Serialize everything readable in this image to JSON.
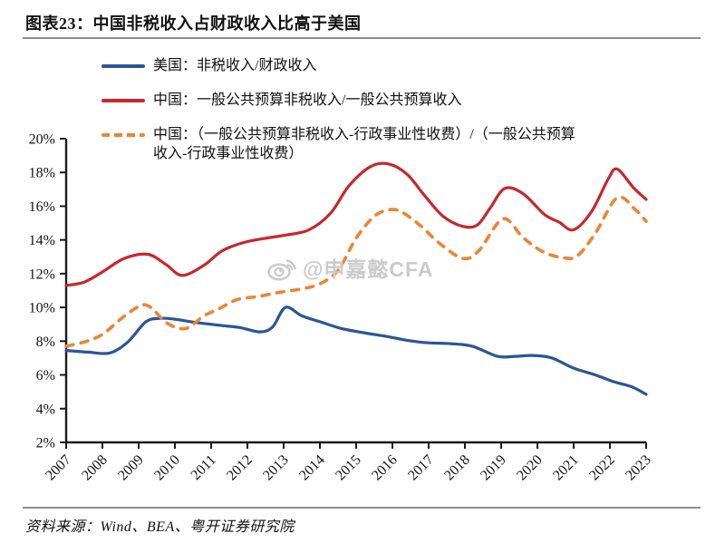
{
  "title": "图表23：中国非税收入占财政收入比高于美国",
  "source": "资料来源：Wind、BEA、粤开证券研究院",
  "watermark": "@申嘉懿CFA",
  "colors": {
    "us_blue": "#2A5697",
    "china_red": "#C8272D",
    "china_orange": "#EE8434",
    "watermark_gray": "#CBCBCB",
    "rule_gray": "#8F8F8F"
  },
  "legend": {
    "items": [
      {
        "lines": [
          "美国：非税收入/财政收入"
        ],
        "style": "solid-blue"
      },
      {
        "lines": [
          "中国：一般公共预算非税收入/一般公共预算收入"
        ],
        "style": "solid-red"
      },
      {
        "lines": [
          "中国：（一般公共预算非税收入-行政事业性收费）/（一般公共预算",
          "收入-行政事业性收费）"
        ],
        "style": "dashed-orange"
      }
    ]
  },
  "chart_data": {
    "type": "line",
    "title": "",
    "xlabel": "",
    "ylabel": "",
    "grid": false,
    "legend_position": "top-left",
    "xlim": [
      2007,
      2023
    ],
    "ylim": [
      2,
      20
    ],
    "y_tick_step": 2,
    "y_tick_suffix": "%",
    "x_ticks": [
      2007,
      2008,
      2009,
      2010,
      2011,
      2012,
      2013,
      2014,
      2015,
      2016,
      2017,
      2018,
      2019,
      2020,
      2021,
      2022,
      2023
    ],
    "series": [
      {
        "name": "美国：非税收入/财政收入",
        "color_key": "us_blue",
        "style": "solid",
        "points": [
          [
            2007,
            7.45
          ],
          [
            2007.6,
            7.35
          ],
          [
            2008.2,
            7.3
          ],
          [
            2008.7,
            7.95
          ],
          [
            2009.2,
            9.15
          ],
          [
            2009.6,
            9.35
          ],
          [
            2010,
            9.3
          ],
          [
            2010.6,
            9.1
          ],
          [
            2011.2,
            8.95
          ],
          [
            2011.8,
            8.8
          ],
          [
            2012.35,
            8.55
          ],
          [
            2012.7,
            8.85
          ],
          [
            2013.05,
            10.0
          ],
          [
            2013.5,
            9.5
          ],
          [
            2014,
            9.15
          ],
          [
            2014.6,
            8.75
          ],
          [
            2015.2,
            8.5
          ],
          [
            2015.8,
            8.3
          ],
          [
            2016.4,
            8.05
          ],
          [
            2017,
            7.9
          ],
          [
            2017.6,
            7.85
          ],
          [
            2018.2,
            7.7
          ],
          [
            2018.9,
            7.1
          ],
          [
            2019.4,
            7.1
          ],
          [
            2019.9,
            7.15
          ],
          [
            2020.4,
            7.0
          ],
          [
            2021,
            6.4
          ],
          [
            2021.6,
            6.0
          ],
          [
            2022.1,
            5.6
          ],
          [
            2022.6,
            5.3
          ],
          [
            2023,
            4.85
          ]
        ]
      },
      {
        "name": "中国：一般公共预算非税收入/一般公共预算收入",
        "color_key": "china_red",
        "style": "solid",
        "points": [
          [
            2007,
            11.3
          ],
          [
            2007.5,
            11.5
          ],
          [
            2008,
            12.1
          ],
          [
            2008.6,
            12.9
          ],
          [
            2009.25,
            13.15
          ],
          [
            2009.75,
            12.55
          ],
          [
            2010.2,
            11.9
          ],
          [
            2010.8,
            12.5
          ],
          [
            2011.3,
            13.35
          ],
          [
            2011.9,
            13.85
          ],
          [
            2012.5,
            14.1
          ],
          [
            2013.1,
            14.3
          ],
          [
            2013.7,
            14.6
          ],
          [
            2014.3,
            15.6
          ],
          [
            2014.8,
            17.2
          ],
          [
            2015.4,
            18.35
          ],
          [
            2015.9,
            18.5
          ],
          [
            2016.4,
            17.9
          ],
          [
            2016.9,
            16.6
          ],
          [
            2017.4,
            15.4
          ],
          [
            2017.95,
            14.8
          ],
          [
            2018.35,
            14.9
          ],
          [
            2018.7,
            15.9
          ],
          [
            2019.1,
            17.05
          ],
          [
            2019.6,
            16.75
          ],
          [
            2020.2,
            15.5
          ],
          [
            2020.6,
            15.05
          ],
          [
            2021,
            14.6
          ],
          [
            2021.5,
            15.7
          ],
          [
            2021.95,
            17.6
          ],
          [
            2022.2,
            18.2
          ],
          [
            2022.65,
            17.1
          ],
          [
            2023,
            16.4
          ]
        ]
      },
      {
        "name": "中国：（一般公共预算非税收入-行政事业性收费）/（一般公共预算收入-行政事业性收费）",
        "color_key": "china_orange",
        "style": "dashed",
        "points": [
          [
            2007,
            7.7
          ],
          [
            2007.5,
            7.95
          ],
          [
            2008,
            8.4
          ],
          [
            2008.5,
            9.3
          ],
          [
            2009,
            10.05
          ],
          [
            2009.3,
            10.05
          ],
          [
            2009.8,
            9.05
          ],
          [
            2010.3,
            8.75
          ],
          [
            2010.8,
            9.5
          ],
          [
            2011.2,
            9.9
          ],
          [
            2011.7,
            10.45
          ],
          [
            2012.3,
            10.65
          ],
          [
            2012.9,
            10.9
          ],
          [
            2013.5,
            11.1
          ],
          [
            2014,
            11.4
          ],
          [
            2014.5,
            12.2
          ],
          [
            2015,
            14.1
          ],
          [
            2015.5,
            15.4
          ],
          [
            2015.95,
            15.8
          ],
          [
            2016.3,
            15.6
          ],
          [
            2016.8,
            14.8
          ],
          [
            2017.3,
            13.8
          ],
          [
            2017.95,
            12.9
          ],
          [
            2018.4,
            13.4
          ],
          [
            2019.05,
            15.25
          ],
          [
            2019.6,
            14.15
          ],
          [
            2020.15,
            13.3
          ],
          [
            2020.7,
            12.95
          ],
          [
            2021.1,
            13.05
          ],
          [
            2021.6,
            14.4
          ],
          [
            2022.2,
            16.5
          ],
          [
            2022.7,
            15.8
          ],
          [
            2023,
            15.1
          ]
        ]
      }
    ]
  }
}
